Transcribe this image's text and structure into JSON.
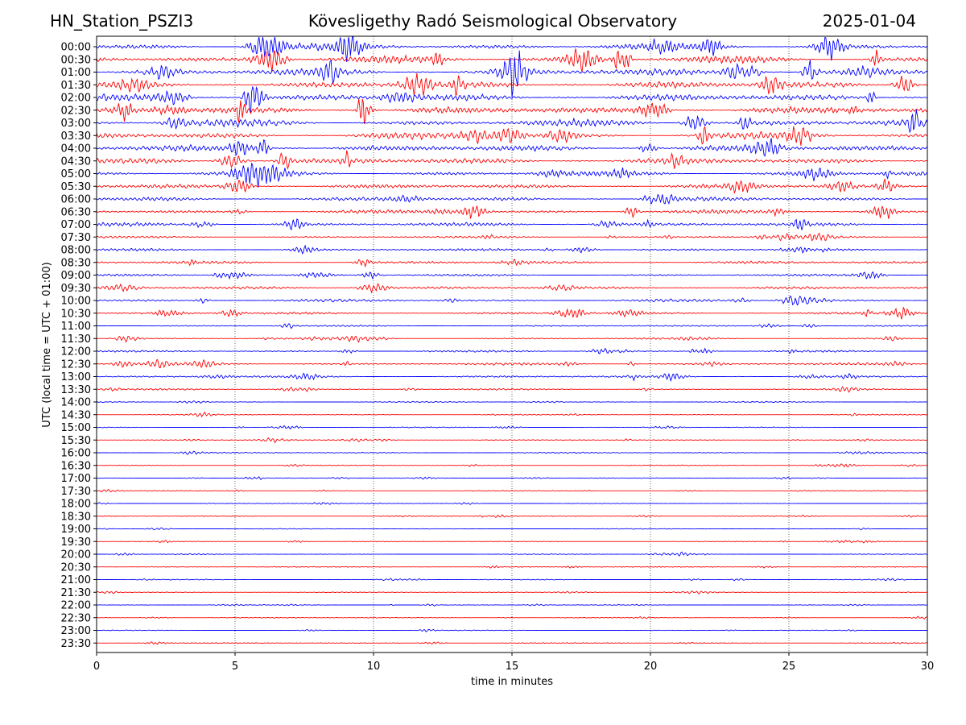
{
  "header": {
    "station": "HN_Station_PSZI3",
    "title": "Kövesligethy Radó Seismological Observatory",
    "date": "2025-01-04"
  },
  "chart_data": {
    "type": "line",
    "title": "Kövesligethy Radó Seismological Observatory",
    "xlabel": "time in minutes",
    "ylabel": "UTC (local time = UTC + 01:00)",
    "xlim": [
      0,
      30
    ],
    "x_ticks": [
      0,
      5,
      10,
      15,
      20,
      25,
      30
    ],
    "x_gridlines": [
      5,
      10,
      15,
      20,
      25
    ],
    "row_labels": [
      "00:00",
      "00:30",
      "01:00",
      "01:30",
      "02:00",
      "02:30",
      "03:00",
      "03:30",
      "04:00",
      "04:30",
      "05:00",
      "05:30",
      "06:00",
      "06:30",
      "07:00",
      "07:30",
      "08:00",
      "08:30",
      "09:00",
      "09:30",
      "10:00",
      "10:30",
      "11:00",
      "11:30",
      "12:00",
      "12:30",
      "13:00",
      "13:30",
      "14:00",
      "14:30",
      "15:00",
      "15:30",
      "16:00",
      "16:30",
      "17:00",
      "17:30",
      "18:00",
      "18:30",
      "19:00",
      "19:30",
      "20:00",
      "20:30",
      "21:00",
      "21:30",
      "22:00",
      "22:30",
      "23:00",
      "23:30"
    ],
    "trace_colors": [
      "#0000ff",
      "#ff0000"
    ],
    "row_activity": [
      1.0,
      1.0,
      1.0,
      1.0,
      1.0,
      1.0,
      1.0,
      0.95,
      0.9,
      0.85,
      0.7,
      0.6,
      0.55,
      0.5,
      0.45,
      0.25,
      0.3,
      0.35,
      0.25,
      0.35,
      0.35,
      0.3,
      0.15,
      0.2,
      0.2,
      0.3,
      0.25,
      0.15,
      0.08,
      0.08,
      0.05,
      0.06,
      0.1,
      0.04,
      0.04,
      0.03,
      0.03,
      0.03,
      0.03,
      0.03,
      0.03,
      0.03,
      0.03,
      0.03,
      0.03,
      0.04,
      0.03,
      0.04
    ],
    "grid": true
  }
}
